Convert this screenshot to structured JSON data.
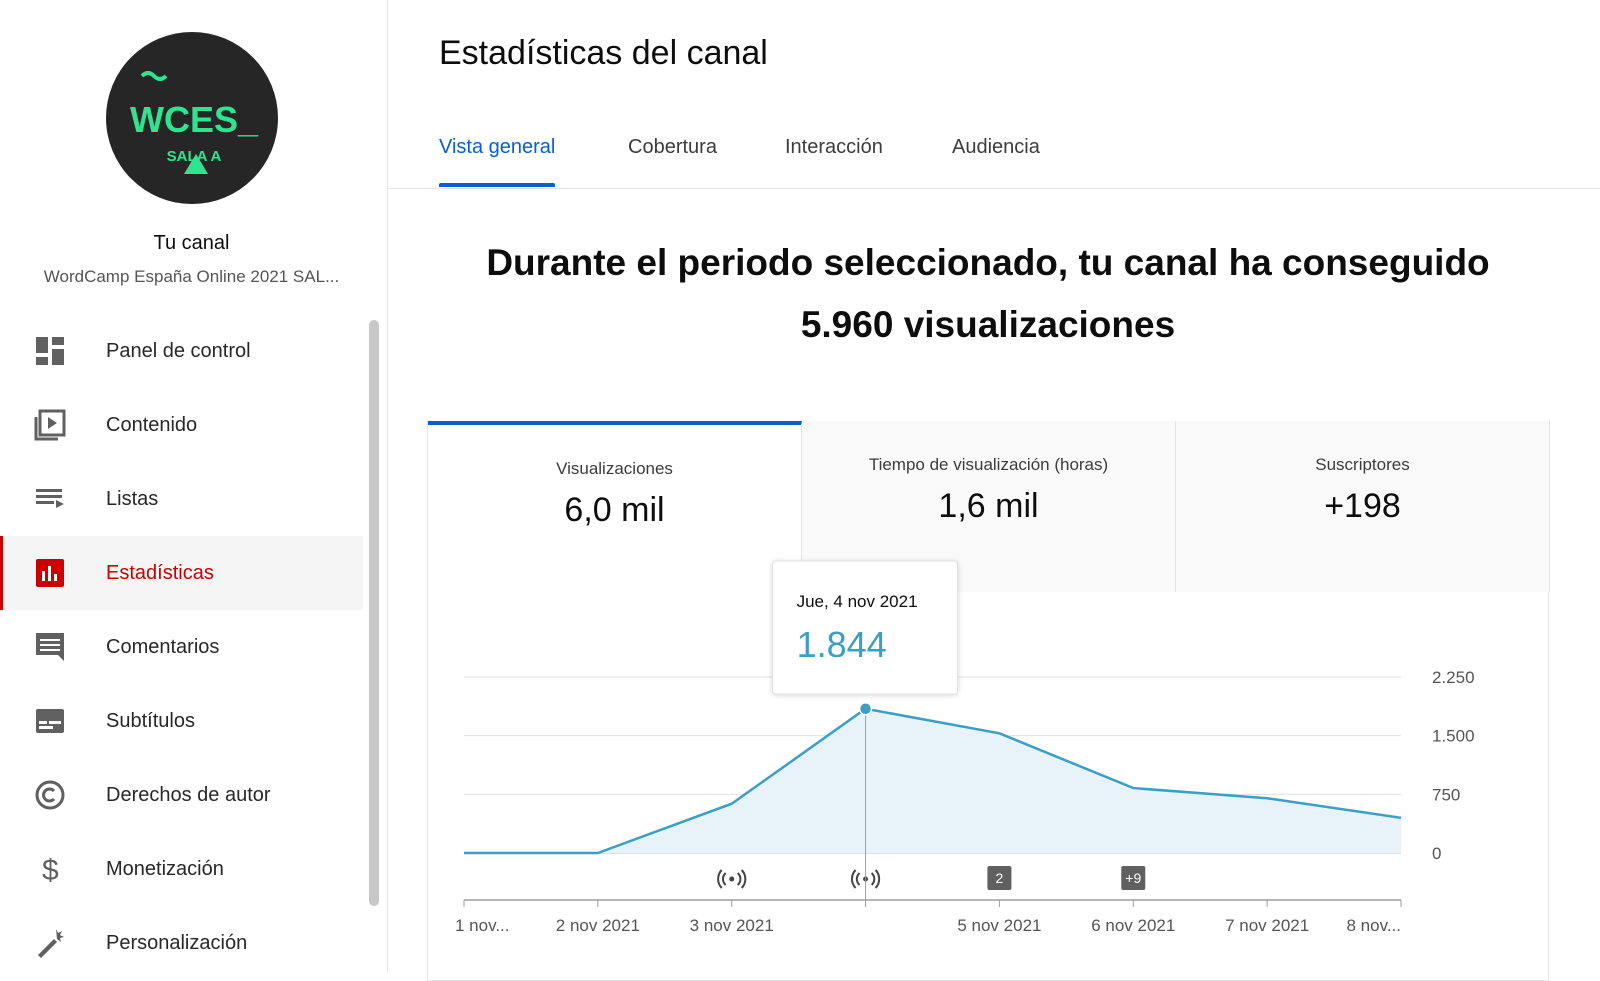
{
  "channel": {
    "logo_text": "WCES_",
    "logo_subtext": "SALA A",
    "title": "Tu canal",
    "name": "WordCamp España Online 2021 SAL..."
  },
  "nav": [
    {
      "label": "Panel de control"
    },
    {
      "label": "Contenido"
    },
    {
      "label": "Listas"
    },
    {
      "label": "Estadísticas",
      "active": true
    },
    {
      "label": "Comentarios"
    },
    {
      "label": "Subtítulos"
    },
    {
      "label": "Derechos de autor"
    },
    {
      "label": "Monetización"
    },
    {
      "label": "Personalización"
    }
  ],
  "header": {
    "title": "Estadísticas del canal"
  },
  "tabs": [
    {
      "label": "Vista general",
      "active": true
    },
    {
      "label": "Cobertura"
    },
    {
      "label": "Interacción"
    },
    {
      "label": "Audiencia"
    }
  ],
  "headline": "Durante el periodo seleccionado, tu canal ha conseguido 5.960 visualizaciones",
  "metrics": [
    {
      "label": "Visualizaciones",
      "value": "6,0 mil",
      "active": true
    },
    {
      "label": "Tiempo de visualización (horas)",
      "value": "1,6 mil"
    },
    {
      "label": "Suscriptores",
      "value": "+198"
    }
  ],
  "chart_data": {
    "type": "area",
    "categories": [
      "1 nov...",
      "2 nov 2021",
      "3 nov 2021",
      null,
      "5 nov 2021",
      "6 nov 2021",
      "7 nov 2021",
      "8 nov..."
    ],
    "values": [
      0,
      0,
      630,
      1844,
      1530,
      830,
      700,
      450
    ],
    "value_labels": [
      null,
      null,
      null,
      "1.844",
      null,
      null,
      null,
      null
    ],
    "tooltip_title": "Jue, 4 nov 2021",
    "event_badges": [
      null,
      null,
      null,
      null,
      "2",
      "+9",
      null,
      null
    ],
    "color": "#3a9fc7",
    "fill_color": "#e8f3f9",
    "ylim": [
      0,
      2250
    ],
    "yticks": [
      0,
      750,
      {
        "value": 1500,
        "label": "1.500"
      },
      {
        "value": 2250,
        "label": "2.250"
      }
    ],
    "grid": true
  }
}
